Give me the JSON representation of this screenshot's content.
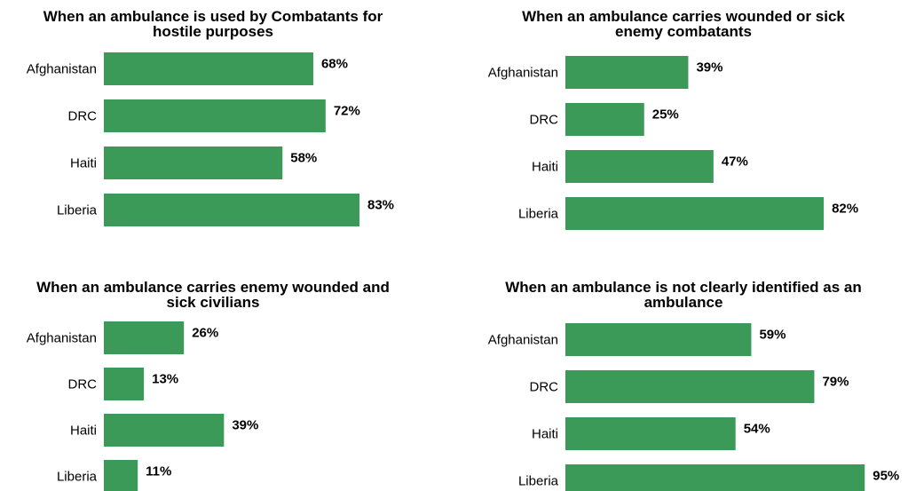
{
  "chart_data": [
    {
      "type": "bar",
      "orientation": "horizontal",
      "title": "When an ambulance is used by Combatants for hostile purposes",
      "categories": [
        "Afghanistan",
        "DRC",
        "Haiti",
        "Liberia"
      ],
      "values": [
        68,
        72,
        58,
        83
      ],
      "value_labels": [
        "68%",
        "72%",
        "58%",
        "83%"
      ],
      "xlim": [
        0,
        100
      ],
      "grid": false,
      "legend": "none"
    },
    {
      "type": "bar",
      "orientation": "horizontal",
      "title": "When an ambulance carries wounded or sick enemy combatants",
      "categories": [
        "Afghanistan",
        "DRC",
        "Haiti",
        "Liberia"
      ],
      "values": [
        39,
        25,
        47,
        82
      ],
      "value_labels": [
        "39%",
        "25%",
        "47%",
        "82%"
      ],
      "xlim": [
        0,
        100
      ],
      "grid": false,
      "legend": "none"
    },
    {
      "type": "bar",
      "orientation": "horizontal",
      "title": "When an ambulance carries enemy wounded and sick civilians",
      "categories": [
        "Afghanistan",
        "DRC",
        "Haiti",
        "Liberia"
      ],
      "values": [
        26,
        13,
        39,
        11
      ],
      "value_labels": [
        "26%",
        "13%",
        "39%",
        "11%"
      ],
      "xlim": [
        0,
        100
      ],
      "grid": false,
      "legend": "none"
    },
    {
      "type": "bar",
      "orientation": "horizontal",
      "title": "When an ambulance is not clearly identified as an ambulance",
      "categories": [
        "Afghanistan",
        "DRC",
        "Haiti",
        "Liberia"
      ],
      "values": [
        59,
        79,
        54,
        95
      ],
      "value_labels": [
        "59%",
        "79%",
        "54%",
        "95%"
      ],
      "xlim": [
        0,
        100
      ],
      "grid": false,
      "legend": "none"
    }
  ],
  "colors": {
    "bar": "#3c9a58"
  }
}
